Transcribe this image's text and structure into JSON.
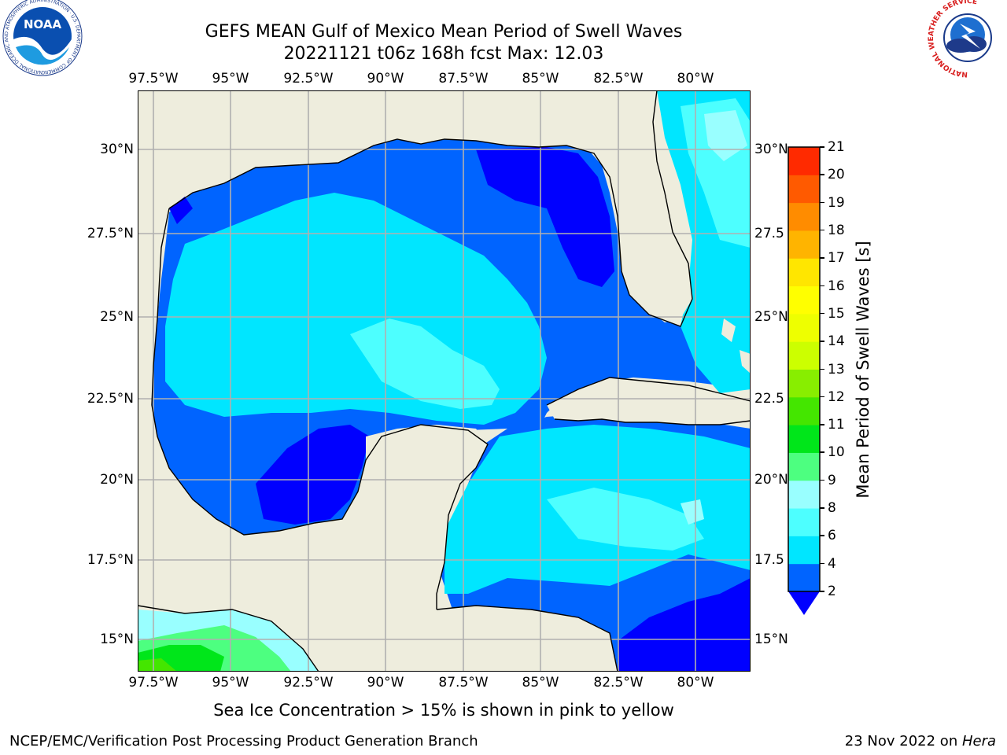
{
  "title": {
    "line1": "GEFS MEAN Gulf of Mexico Mean Period of Swell Waves",
    "line2": "20221121 t06z 168h fcst   Max: 12.03"
  },
  "map": {
    "region": "Gulf of Mexico",
    "lon_labels": [
      "97.5°W",
      "95°W",
      "92.5°W",
      "90°W",
      "87.5°W",
      "85°W",
      "82.5°W",
      "80°W"
    ],
    "lat_labels": [
      "30°N",
      "27.5°N",
      "25°N",
      "22.5°N",
      "20°N",
      "17.5°N",
      "15°N"
    ],
    "lat_labels_right": [
      "30°N",
      "27.5",
      "25°N",
      "22.5",
      "20°N",
      "17.5",
      "15°N"
    ],
    "colors": {
      "land": "#eeeddd",
      "coast": "#000000",
      "grid": "#b0b0b0",
      "no_data": "#ffffff"
    }
  },
  "colorbar": {
    "label": "Mean Period of Swell Waves [s]",
    "ticks": [
      "2",
      "4",
      "6",
      "8",
      "9",
      "10",
      "11",
      "12",
      "13",
      "14",
      "15",
      "16",
      "17",
      "18",
      "19",
      "20",
      "21"
    ],
    "colors": [
      "#0064ff",
      "#00e6ff",
      "#4dffff",
      "#99ffff",
      "#4dff80",
      "#00e61a",
      "#44e600",
      "#88ee00",
      "#ccff00",
      "#eeff00",
      "#ffff00",
      "#ffe600",
      "#ffb400",
      "#ff8c00",
      "#ff5a00",
      "#ff2a00"
    ],
    "under_color": "#0000ff"
  },
  "caption": "Sea Ice Concentration > 15% is shown in pink to yellow",
  "footer": {
    "left": "NCEP/EMC/Verification Post Processing Product Generation Branch",
    "right_prefix": "23 Nov 2022 on ",
    "right_machine": "Hera"
  },
  "logos": {
    "noaa": "NOAA",
    "noaa_ring": "NATIONAL OCEANIC AND ATMOSPHERIC ADMINISTRATION · U.S. DEPARTMENT OF COMMERCE",
    "nws_ring": "NATIONAL WEATHER SERVICE"
  }
}
